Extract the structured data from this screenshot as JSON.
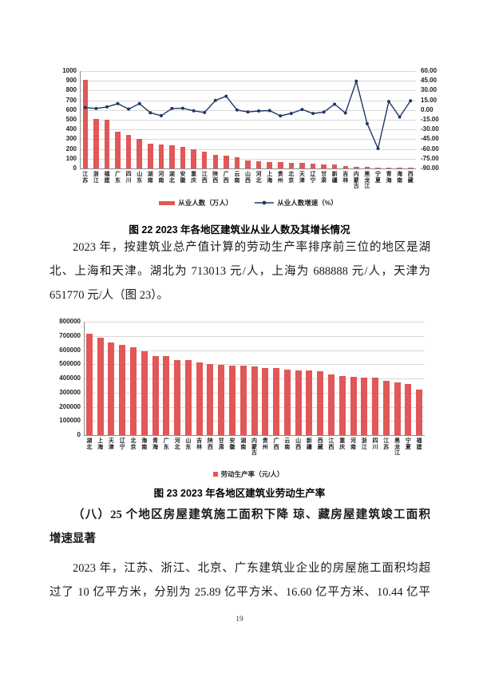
{
  "doc": {
    "paragraph1_lines": [
      "2023 年，按建筑业总产值计算的劳动生产率排序前三位的地区是湖",
      "北、上海和天津。湖北为 713013 元/人，上海为 688888 元/人，天津为",
      "651770 元/人（图 23）。"
    ],
    "heading_lines": [
      "（八）25 个地区房屋建筑施工面积下降  琼、藏房屋建筑竣工面积",
      "增速显著"
    ],
    "paragraph2_lines": [
      "2023 年，江苏、浙江、北京、广东建筑业企业的房屋施工面积均超",
      "过了 10 亿平方米，分别为 25.89 亿平方米、16.60 亿平方米、10.44 亿平"
    ],
    "page_number": "19"
  },
  "chart_data": [
    {
      "type": "bar",
      "title": "图 22  2023 年各地区建筑业从业人数及其增长情况",
      "categories": [
        "江苏",
        "浙江",
        "福建",
        "广东",
        "四川",
        "山东",
        "湖南",
        "河南",
        "湖北",
        "安徽",
        "重庆",
        "江西",
        "陕西",
        "广西",
        "云南",
        "山西",
        "河北",
        "上海",
        "贵州",
        "北京",
        "天津",
        "辽宁",
        "甘肃",
        "新疆",
        "吉林",
        "内蒙古",
        "黑龙江",
        "宁夏",
        "青海",
        "海南",
        "西藏"
      ],
      "series": [
        {
          "name": "从业人数（万人）",
          "kind": "bar",
          "axis": "left",
          "values": [
            913,
            505,
            497,
            375,
            341,
            300,
            251,
            246,
            237,
            219,
            196,
            170,
            143,
            133,
            118,
            80,
            77,
            70,
            62,
            58,
            55,
            46,
            42,
            38,
            28,
            18,
            15,
            10,
            8,
            6,
            4
          ]
        },
        {
          "name": "从业人数增速（%）",
          "kind": "line",
          "axis": "right",
          "values": [
            3.8,
            2.3,
            4.8,
            9.8,
            1.5,
            9.8,
            -4.2,
            -8.7,
            2.3,
            2.7,
            -1.2,
            -3.8,
            14.7,
            21.3,
            0,
            -3,
            -1.5,
            -0.8,
            -9,
            -5.3,
            0.8,
            -5.3,
            -3.2,
            9,
            -4.5,
            44.3,
            -21,
            -59.3,
            13.1,
            -10.7,
            14.2
          ]
        }
      ],
      "left_axis": {
        "min": 0,
        "max": 1000,
        "step": 100,
        "ticks": [
          "0",
          "100",
          "200",
          "300",
          "400",
          "500",
          "600",
          "700",
          "800",
          "900",
          "1000"
        ]
      },
      "right_axis": {
        "min": -90,
        "max": 60,
        "step": 15,
        "ticks": [
          "-90.00",
          "-75.00",
          "-60.00",
          "-45.00",
          "-30.00",
          "-15.00",
          "0.00",
          "15.00",
          "30.00",
          "45.00",
          "60.00"
        ]
      },
      "grid": "horizontal",
      "legend_position": "bottom",
      "colors": {
        "bar": "#e25757",
        "line": "#1f3864"
      }
    },
    {
      "type": "bar",
      "title": "图 23  2023 年各地区建筑业劳动生产率",
      "categories": [
        "湖北",
        "上海",
        "天津",
        "辽宁",
        "北京",
        "海南",
        "青海",
        "广东",
        "河北",
        "山东",
        "吉林",
        "陕西",
        "甘肃",
        "安徽",
        "湖南",
        "内蒙古",
        "贵州",
        "广西",
        "云南",
        "山西",
        "新疆",
        "西藏",
        "江西",
        "重庆",
        "河南",
        "浙江",
        "四川",
        "江苏",
        "黑龙江",
        "宁夏",
        "福建"
      ],
      "series": [
        {
          "name": "劳动生产率（元/人）",
          "kind": "bar",
          "axis": "left",
          "values": [
            713013,
            688888,
            651770,
            637000,
            622000,
            592000,
            558000,
            556000,
            531000,
            529000,
            513000,
            503000,
            496000,
            493000,
            490000,
            487000,
            474000,
            472000,
            462000,
            458000,
            455000,
            452000,
            428000,
            418000,
            410000,
            408000,
            404000,
            384000,
            371000,
            362000,
            322000
          ]
        }
      ],
      "left_axis": {
        "min": 0,
        "max": 800000,
        "step": 100000,
        "ticks": [
          "0",
          "100000",
          "200000",
          "300000",
          "400000",
          "500000",
          "600000",
          "700000",
          "800000"
        ]
      },
      "grid": "horizontal",
      "legend_position": "bottom",
      "colors": {
        "bar": "#e25757",
        "line": "#1f3864"
      }
    }
  ]
}
